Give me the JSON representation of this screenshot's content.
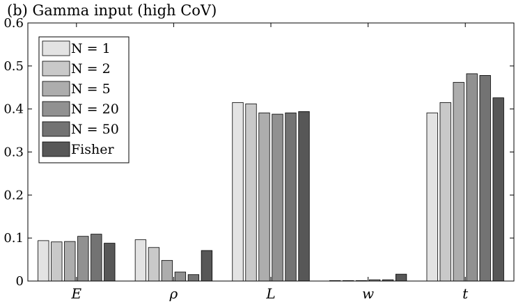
{
  "chart_data": {
    "type": "bar",
    "title": "(b) Gamma input (high CoV)",
    "categories": [
      "E",
      "ρ",
      "L",
      "w",
      "t"
    ],
    "yticks": [
      "0",
      "0.1",
      "0.2",
      "0.3",
      "0.4",
      "0.5",
      "0.6"
    ],
    "ylim": [
      0,
      0.6
    ],
    "legend_position": "top-left",
    "grid": false,
    "series": [
      {
        "name": "N = 1",
        "values": [
          0.094,
          0.096,
          0.415,
          0.001,
          0.391
        ],
        "color": "#e3e3e3"
      },
      {
        "name": "N = 2",
        "values": [
          0.091,
          0.078,
          0.412,
          0.001,
          0.415
        ],
        "color": "#c9c9c9"
      },
      {
        "name": "N = 5",
        "values": [
          0.092,
          0.048,
          0.391,
          0.001,
          0.462
        ],
        "color": "#adadad"
      },
      {
        "name": "N = 20",
        "values": [
          0.104,
          0.021,
          0.388,
          0.003,
          0.482
        ],
        "color": "#919191"
      },
      {
        "name": "N = 50",
        "values": [
          0.109,
          0.015,
          0.391,
          0.003,
          0.478
        ],
        "color": "#737373"
      },
      {
        "name": "Fisher",
        "values": [
          0.088,
          0.071,
          0.394,
          0.016,
          0.426
        ],
        "color": "#575757"
      }
    ]
  }
}
